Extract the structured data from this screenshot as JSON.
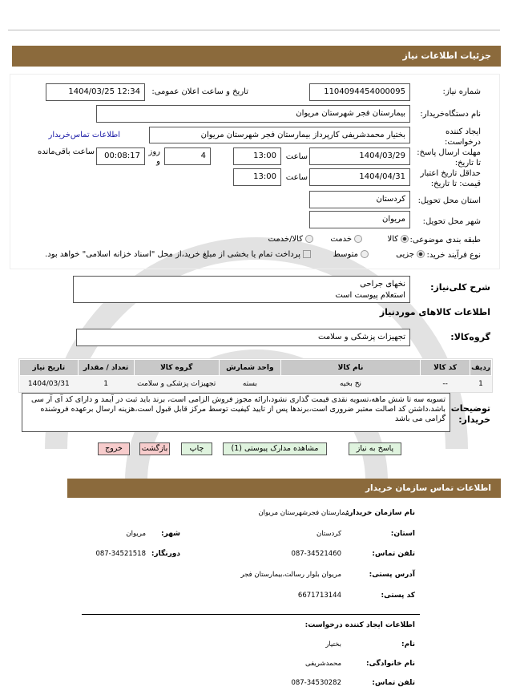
{
  "header": {
    "title": "جزئیات اطلاعات نیاز"
  },
  "form": {
    "need_number_label": "شماره نیاز:",
    "need_number": "1104094454000095",
    "announce_label": "تاریخ و ساعت اعلان عمومی:",
    "announce_value": "1404/03/25 12:34",
    "buyer_org_label": "نام دستگاه‌خریدار:",
    "buyer_org": "بیمارستان فجر شهرستان مریوان",
    "creator_label": "ایجاد کننده درخواست:",
    "creator": "بختیار محمدشریفی کارپرداز بیمارستان فجر شهرستان مریوان",
    "contact_link": "اطلاعات تماس‌خریدار",
    "deadline_label": "مهلت ارسال پاسخ: تا تاریخ:",
    "deadline_date": "1404/03/29",
    "time_label": "ساعت",
    "deadline_time": "13:00",
    "days_value": "4",
    "days_label": "روز و",
    "remaining_value": "00:08:17",
    "remaining_label": "ساعت باقی‌مانده",
    "validity_label": "حداقل تاریخ اعتبار قیمت: تا تاریخ:",
    "validity_date": "1404/04/31",
    "validity_time": "13:00",
    "province_label": "استان محل تحویل:",
    "province": "کردستان",
    "city_label": "شهر محل تحویل:",
    "city": "مریوان",
    "category_label": "طبقه بندی موضوعی:",
    "category_options": [
      "کالا",
      "خدمت",
      "کالا/خدمت"
    ],
    "category_selected": "کالا",
    "process_label": "نوع فرآیند خرید:",
    "process_options": [
      "جزیی",
      "متوسط"
    ],
    "process_selected": "جزیی",
    "payment_note": "پرداخت تمام یا بخشی از مبلغ خرید،از محل \"اسناد خزانه اسلامی\" خواهد بود.",
    "summary_label": "شرح کلی‌نیاز:",
    "summary_lines": [
      "نخهای جراحی",
      "استعلام پیوست است"
    ],
    "goods_title": "اطلاعات کالاهای موردنیاز",
    "group_label": "گروه‌کالا:",
    "group": "تجهیزات پزشکی و سلامت"
  },
  "table": {
    "headers": [
      "ردیف",
      "کد کالا",
      "نام کالا",
      "واحد شمارش",
      "گروه کالا",
      "تعداد / مقدار",
      "تاریخ نیاز"
    ],
    "rows": [
      [
        "1",
        "--",
        "نخ بخیه",
        "بسته",
        "تجهیزات پزشکی و سلامت",
        "1",
        "1404/03/31"
      ]
    ]
  },
  "notes": {
    "label": "توضیحات خریدار:",
    "text": "تسویه سه تا شش ماهه،تسویه نقدی قیمت گذاری نشود،ارائه مجوز فروش الزامی است، برند باید ثبت در آیمد و دارای کد آی آر سی باشد،داشتن کد اصالت معتبر ضروری است،برندها پس از تایید کیفیت توسط مرکز قابل قبول است،هزینه ارسال برعهده فروشنده گرامی می باشد"
  },
  "buttons": {
    "reply": "پاسخ به نیاز",
    "attachments": "مشاهده مدارک پیوستی (1)",
    "print": "چاپ",
    "back": "بازگشت",
    "exit": "خروج"
  },
  "contact": {
    "title": "اطلاعات تماس سازمان خریدار",
    "org_label": "نام سازمان خریدار:",
    "org": "بیمارستان فجرشهرستان مریوان",
    "province_label": "استان:",
    "province": "کردستان",
    "city_label": "شهر:",
    "city": "مریوان",
    "phone_label": "تلفن تماس:",
    "phone": "087-34521460",
    "fax_label": "دورنگار:",
    "fax": "087-34521518",
    "address_label": "آدرس پستی:",
    "address": "مریوان بلوار رسالت،بیمارستان فجر",
    "postal_label": "کد پستی:",
    "postal": "6671713144",
    "creator_title": "اطلاعات ایجاد کننده درخواست:",
    "name_label": "نام:",
    "name": "بختیار",
    "family_label": "نام خانوادگی:",
    "family": "محمدشریفی",
    "cphone_label": "تلفن تماس:",
    "cphone": "087-34530282"
  },
  "colors": {
    "header_bar": "#8b6a3c",
    "link": "#1a1aa6",
    "green_button": "#dff3de",
    "red_button": "#f7cccc"
  }
}
